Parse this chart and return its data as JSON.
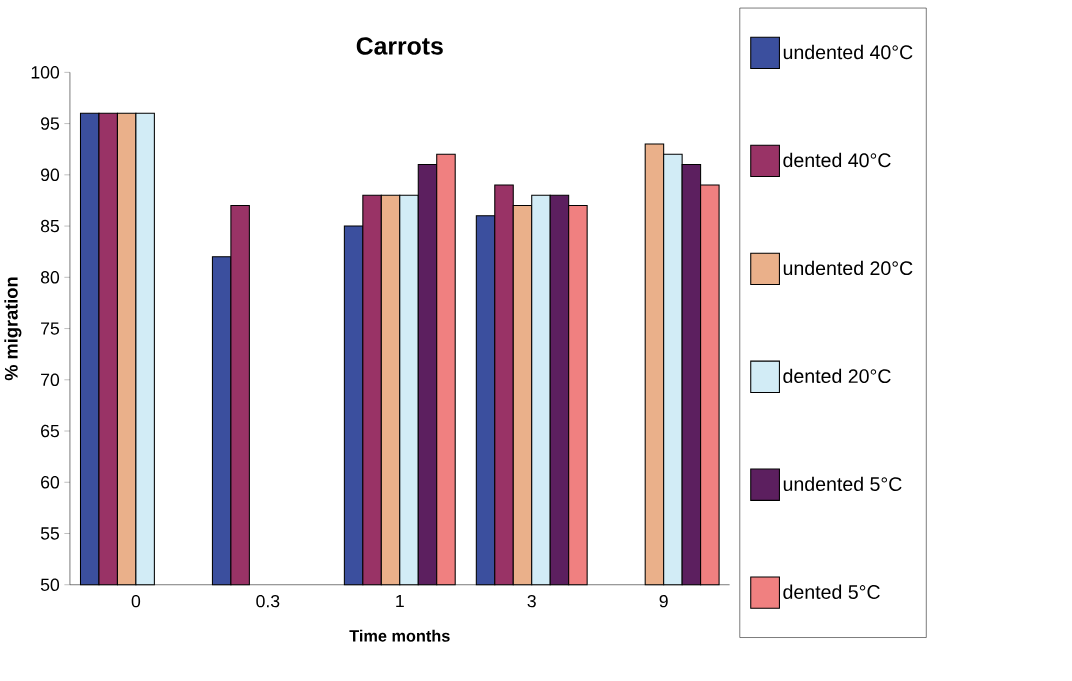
{
  "chart_data": {
    "type": "bar",
    "title": "Carrots",
    "xlabel": "Time months",
    "ylabel": "% migration",
    "categories": [
      "0",
      "0.3",
      "1",
      "3",
      "9"
    ],
    "series": [
      {
        "name": "undented 40°C",
        "color": "#3b4f9e",
        "values": [
          96,
          82,
          85,
          86,
          null
        ]
      },
      {
        "name": "dented 40°C",
        "color": "#993366",
        "values": [
          96,
          87,
          88,
          89,
          null
        ]
      },
      {
        "name": "undented 20°C",
        "color": "#eab08a",
        "values": [
          96,
          null,
          88,
          87,
          93
        ]
      },
      {
        "name": "dented 20°C",
        "color": "#d2ecf6",
        "values": [
          96,
          null,
          88,
          88,
          92
        ]
      },
      {
        "name": "undented 5°C",
        "color": "#5c1f5f",
        "values": [
          null,
          null,
          91,
          88,
          91
        ]
      },
      {
        "name": "dented 5°C",
        "color": "#f08080",
        "values": [
          null,
          null,
          92,
          87,
          89
        ]
      }
    ],
    "ylim": [
      50,
      100
    ],
    "yticks": [
      50,
      55,
      60,
      65,
      70,
      75,
      80,
      85,
      90,
      95,
      100
    ],
    "legend": "right",
    "grid": false
  }
}
